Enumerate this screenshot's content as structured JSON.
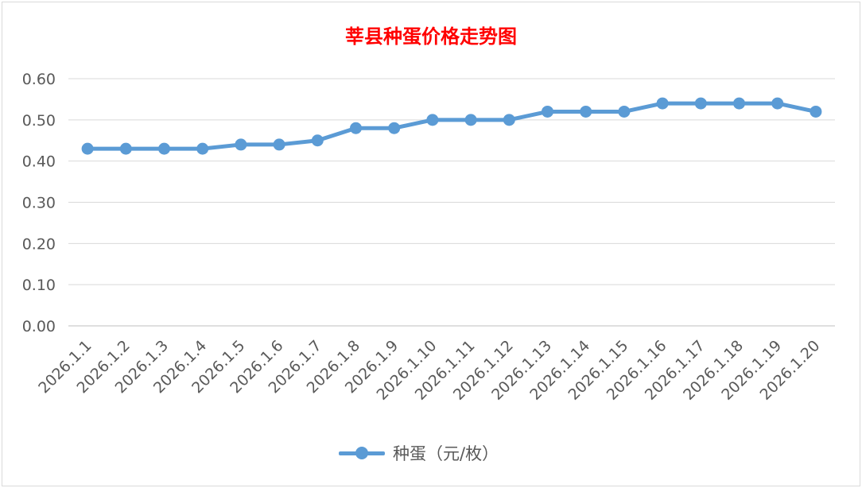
{
  "chart_data": {
    "type": "line",
    "title": "莘县种蛋价格走势图",
    "xlabel": "",
    "ylabel": "",
    "ylim": [
      0,
      0.6
    ],
    "yticks": [
      "0.00",
      "0.10",
      "0.20",
      "0.30",
      "0.40",
      "0.50",
      "0.60"
    ],
    "grid": true,
    "legend_position": "bottom",
    "categories": [
      "2026.1.1",
      "2026.1.2",
      "2026.1.3",
      "2026.1.4",
      "2026.1.5",
      "2026.1.6",
      "2026.1.7",
      "2026.1.8",
      "2026.1.9",
      "2026.1.10",
      "2026.1.11",
      "2026.1.12",
      "2026.1.13",
      "2026.1.14",
      "2026.1.15",
      "2026.1.16",
      "2026.1.17",
      "2026.1.18",
      "2026.1.19",
      "2026.1.20"
    ],
    "series": [
      {
        "name": "种蛋（元/枚）",
        "color": "#5b9bd5",
        "values": [
          0.43,
          0.43,
          0.43,
          0.43,
          0.44,
          0.44,
          0.45,
          0.48,
          0.48,
          0.5,
          0.5,
          0.5,
          0.52,
          0.52,
          0.52,
          0.54,
          0.54,
          0.54,
          0.54,
          0.52
        ]
      }
    ]
  }
}
